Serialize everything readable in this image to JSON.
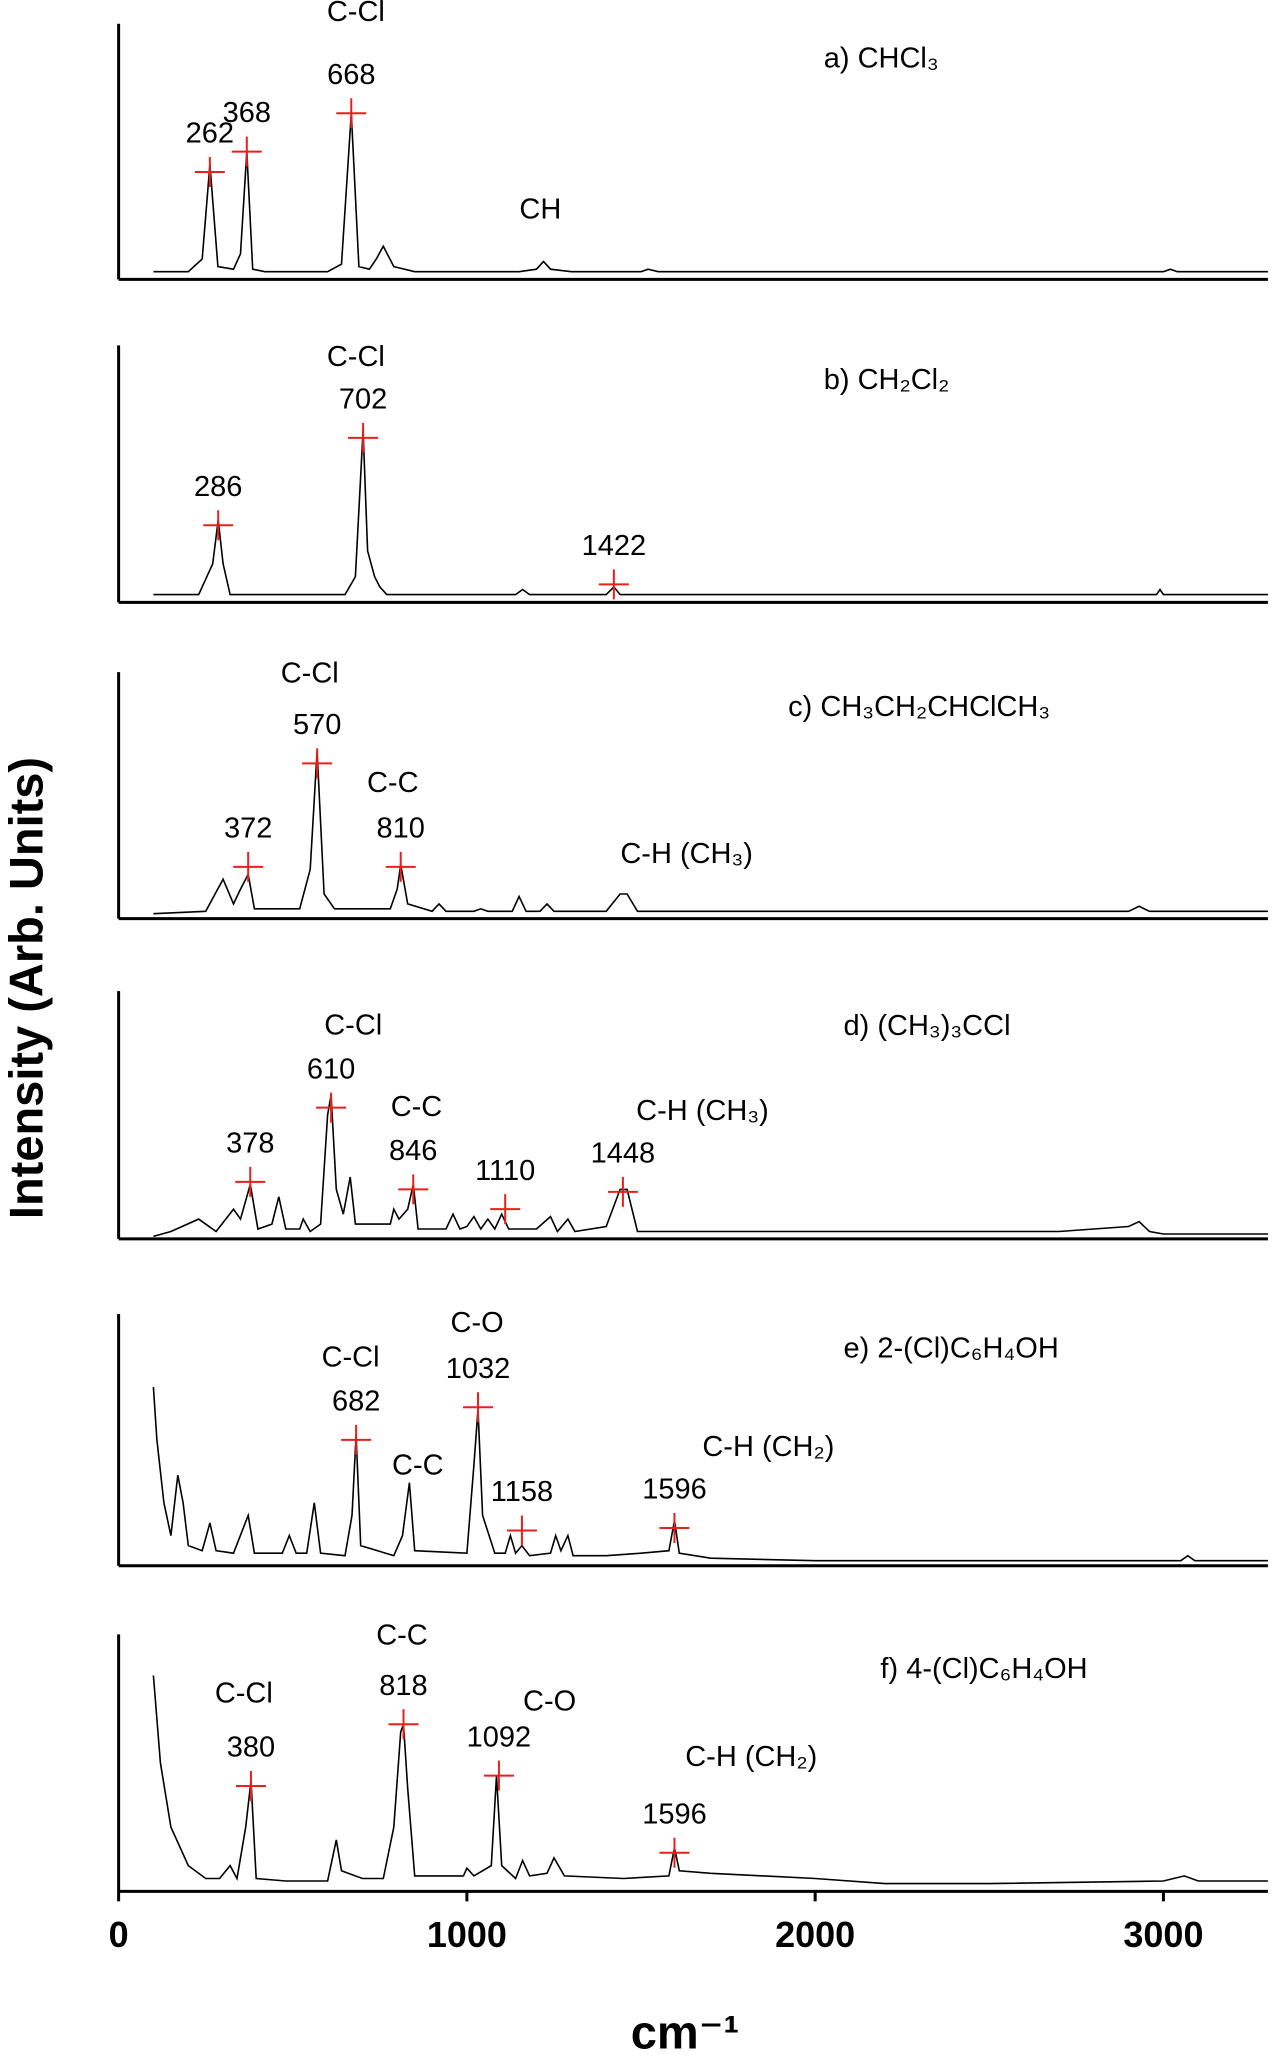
{
  "figure": {
    "y_label": "Intensity (Arb. Units)",
    "x_label": "cm⁻¹"
  },
  "chart_data": [
    {
      "type": "line",
      "title": "a) CHCl₃",
      "xlim": [
        0,
        3300
      ],
      "ylim": [
        0,
        100
      ],
      "annotations": [
        "C-Cl",
        "CH"
      ],
      "series": [
        {
          "color": "#000000",
          "x": [
            100,
            200,
            240,
            262,
            285,
            330,
            350,
            368,
            385,
            420,
            600,
            640,
            668,
            690,
            720,
            740,
            760,
            790,
            850,
            1150,
            1200,
            1220,
            1240,
            1300,
            1500,
            1520,
            1550,
            2000,
            3000,
            3020,
            3040,
            3300
          ],
          "values": [
            3,
            3,
            8,
            45,
            5,
            4,
            10,
            50,
            4,
            3,
            3,
            6,
            65,
            5,
            4,
            8,
            13,
            5,
            3,
            3,
            4,
            7,
            4,
            3,
            3,
            4,
            3,
            3,
            3,
            4,
            3,
            3
          ]
        }
      ],
      "peaks": {
        "color": "#e8201c",
        "x": [
          262,
          368,
          668
        ],
        "values": [
          42,
          50,
          65
        ]
      }
    },
    {
      "type": "line",
      "title": "b) CH₂Cl₂",
      "xlim": [
        0,
        3300
      ],
      "ylim": [
        0,
        100
      ],
      "annotations": [
        "C-Cl"
      ],
      "series": [
        {
          "color": "#000000",
          "x": [
            100,
            230,
            270,
            286,
            300,
            320,
            650,
            680,
            702,
            715,
            735,
            750,
            770,
            1140,
            1160,
            1180,
            1400,
            1422,
            1440,
            2980,
            2990,
            3000,
            3300
          ],
          "values": [
            3,
            3,
            15,
            32,
            15,
            3,
            3,
            10,
            67,
            20,
            10,
            6,
            3,
            3,
            5,
            3,
            3,
            6,
            3,
            3,
            5,
            3,
            3
          ]
        }
      ],
      "peaks": {
        "color": "#e8201c",
        "x": [
          286,
          702,
          1422
        ],
        "values": [
          30,
          64,
          7
        ]
      }
    },
    {
      "type": "line",
      "title": "c) CH₃CH₂CHClCH₃",
      "xlim": [
        0,
        3300
      ],
      "ylim": [
        0,
        100
      ],
      "annotations": [
        "C-Cl",
        "C-C",
        "C-H (CH₃)"
      ],
      "series": [
        {
          "color": "#000000",
          "x": [
            100,
            250,
            300,
            330,
            350,
            372,
            390,
            520,
            550,
            570,
            590,
            620,
            780,
            800,
            810,
            830,
            900,
            920,
            940,
            1020,
            1040,
            1060,
            1130,
            1150,
            1170,
            1210,
            1230,
            1250,
            1400,
            1440,
            1460,
            1490,
            2700,
            2900,
            2930,
            2960,
            3000,
            3300
          ],
          "values": [
            2,
            3,
            16,
            6,
            12,
            18,
            4,
            4,
            20,
            68,
            10,
            4,
            4,
            12,
            22,
            6,
            3,
            6,
            3,
            3,
            4,
            3,
            3,
            9,
            3,
            3,
            6,
            3,
            3,
            10,
            10,
            3,
            3,
            3,
            5,
            3,
            3,
            3
          ]
        }
      ],
      "peaks": {
        "color": "#e8201c",
        "x": [
          372,
          570,
          810
        ],
        "values": [
          21,
          63,
          21
        ]
      }
    },
    {
      "type": "line",
      "title": "d) (CH₃)₃CCl",
      "xlim": [
        0,
        3300
      ],
      "ylim": [
        0,
        100
      ],
      "annotations": [
        "C-Cl",
        "C-C",
        "C-H (CH₃)"
      ],
      "series": [
        {
          "color": "#000000",
          "x": [
            100,
            150,
            230,
            280,
            330,
            350,
            378,
            400,
            440,
            460,
            480,
            520,
            530,
            550,
            580,
            600,
            610,
            625,
            645,
            665,
            680,
            780,
            790,
            805,
            830,
            846,
            860,
            940,
            960,
            980,
            1000,
            1020,
            1040,
            1060,
            1080,
            1100,
            1120,
            1200,
            1240,
            1260,
            1290,
            1310,
            1400,
            1440,
            1460,
            1490,
            2700,
            2900,
            2930,
            2960,
            3000,
            3300
          ],
          "values": [
            1,
            3,
            8,
            3,
            12,
            8,
            22,
            4,
            6,
            17,
            4,
            4,
            8,
            3,
            6,
            50,
            58,
            20,
            10,
            25,
            6,
            6,
            12,
            8,
            12,
            22,
            4,
            4,
            10,
            4,
            5,
            9,
            4,
            8,
            4,
            10,
            4,
            4,
            9,
            3,
            8,
            3,
            5,
            20,
            20,
            3,
            3,
            5,
            7,
            3,
            2,
            2
          ]
        }
      ],
      "peaks": {
        "color": "#e8201c",
        "x": [
          378,
          610,
          846,
          1110,
          1448
        ],
        "values": [
          23,
          53,
          20,
          12,
          19
        ]
      }
    },
    {
      "type": "line",
      "title": "e) 2-(Cl)C₆H₄OH",
      "xlim": [
        0,
        3300
      ],
      "ylim": [
        0,
        100
      ],
      "annotations": [
        "C-Cl",
        "C-O",
        "C-C",
        "C-H (CH₂)"
      ],
      "series": [
        {
          "color": "#000000",
          "x": [
            100,
            110,
            130,
            150,
            170,
            185,
            200,
            240,
            262,
            280,
            330,
            372,
            390,
            470,
            490,
            510,
            540,
            562,
            580,
            650,
            670,
            682,
            695,
            790,
            815,
            835,
            850,
            1000,
            1020,
            1032,
            1045,
            1080,
            1110,
            1125,
            1140,
            1158,
            1180,
            1240,
            1255,
            1270,
            1290,
            1305,
            1400,
            1500,
            1580,
            1596,
            1610,
            1700,
            2000,
            3050,
            3070,
            3090,
            3300
          ],
          "values": [
            71,
            50,
            25,
            12,
            36,
            25,
            8,
            6,
            17,
            6,
            5,
            20,
            5,
            5,
            12,
            5,
            5,
            25,
            5,
            4,
            20,
            52,
            8,
            4,
            12,
            33,
            6,
            5,
            40,
            62,
            20,
            5,
            5,
            12,
            5,
            8,
            4,
            5,
            12,
            6,
            12,
            4,
            4,
            5,
            6,
            18,
            5,
            3,
            2,
            2,
            4,
            2,
            2
          ]
        }
      ],
      "peaks": {
        "color": "#e8201c",
        "x": [
          682,
          1032,
          1158,
          1596
        ],
        "values": [
          50,
          63,
          14,
          15
        ]
      }
    },
    {
      "type": "line",
      "title": "f) 4-(Cl)C₆H₄OH",
      "xlim": [
        0,
        3300
      ],
      "ylim": [
        0,
        100
      ],
      "xticks": [
        0,
        1000,
        2000,
        3000
      ],
      "annotations": [
        "C-Cl",
        "C-C",
        "C-O",
        "C-H (CH₂)"
      ],
      "series": [
        {
          "color": "#000000",
          "x": [
            100,
            120,
            150,
            200,
            250,
            290,
            320,
            340,
            365,
            380,
            395,
            480,
            600,
            625,
            640,
            700,
            760,
            790,
            810,
            818,
            830,
            850,
            990,
            1000,
            1020,
            1070,
            1085,
            1100,
            1140,
            1160,
            1180,
            1230,
            1250,
            1280,
            1450,
            1580,
            1596,
            1610,
            1700,
            2000,
            2200,
            2500,
            3000,
            3060,
            3100,
            3300
          ],
          "values": [
            84,
            50,
            25,
            10,
            5,
            5,
            10,
            5,
            25,
            43,
            5,
            4,
            4,
            20,
            8,
            5,
            5,
            25,
            62,
            65,
            40,
            6,
            6,
            9,
            6,
            10,
            45,
            10,
            5,
            12,
            6,
            7,
            13,
            6,
            5,
            6,
            17,
            8,
            7,
            5,
            3,
            3,
            4,
            6,
            4,
            4
          ]
        }
      ],
      "peaks": {
        "color": "#e8201c",
        "x": [
          380,
          818,
          1092,
          1596
        ],
        "values": [
          41,
          65,
          45,
          15
        ]
      }
    }
  ]
}
